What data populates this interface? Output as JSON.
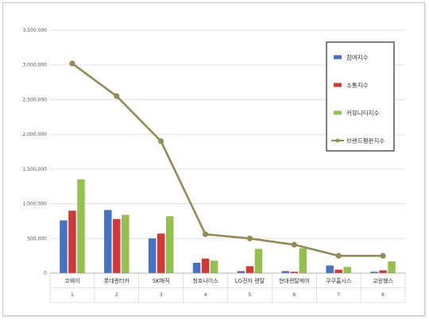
{
  "chart_data": {
    "type": "bar",
    "categories": [
      "코웨이",
      "롯데렌터카",
      "SK매직",
      "청호나이스",
      "LG전자 렌탈",
      "현대렌탈케어",
      "쿠쿠홈시스",
      "교원웰스"
    ],
    "ranks": [
      "1",
      "2",
      "3",
      "4",
      "5",
      "6",
      "7",
      "8"
    ],
    "ylim": [
      0,
      3500000
    ],
    "yticks": [
      0,
      500000,
      1000000,
      1500000,
      2000000,
      2500000,
      3000000,
      3500000
    ],
    "ytick_labels": [
      "0",
      "500,000",
      "1,000,000",
      "1,500,000",
      "2,000,000",
      "2,500,000",
      "3,000,000",
      "3,500,000"
    ],
    "grid": true,
    "legend_position": "right",
    "series": [
      {
        "name": "참여지수",
        "kind": "bar",
        "color": "#4472c4",
        "values": [
          760000,
          910000,
          500000,
          150000,
          30000,
          30000,
          110000,
          20000
        ]
      },
      {
        "name": "소통지수",
        "kind": "bar",
        "color": "#d03a36",
        "values": [
          900000,
          780000,
          570000,
          210000,
          100000,
          20000,
          50000,
          40000
        ]
      },
      {
        "name": "커뮤니티지수",
        "kind": "bar",
        "color": "#92c24b",
        "values": [
          1350000,
          840000,
          820000,
          180000,
          350000,
          360000,
          90000,
          170000
        ]
      },
      {
        "name": "브랜드평판지수",
        "kind": "line",
        "color": "#948a54",
        "values": [
          3020000,
          2550000,
          1900000,
          560000,
          500000,
          410000,
          250000,
          250000
        ]
      }
    ]
  }
}
